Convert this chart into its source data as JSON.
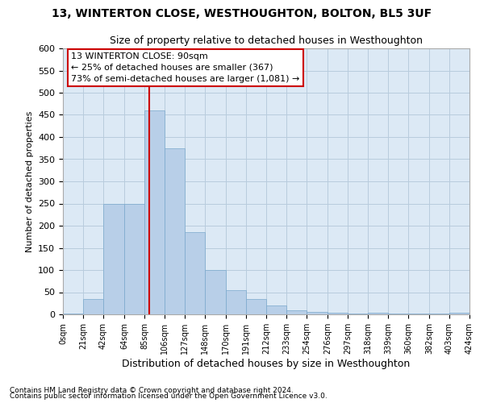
{
  "title": "13, WINTERTON CLOSE, WESTHOUGHTON, BOLTON, BL5 3UF",
  "subtitle": "Size of property relative to detached houses in Westhoughton",
  "xlabel": "Distribution of detached houses by size in Westhoughton",
  "ylabel": "Number of detached properties",
  "footer1": "Contains HM Land Registry data © Crown copyright and database right 2024.",
  "footer2": "Contains public sector information licensed under the Open Government Licence v3.0.",
  "annotation_line1": "13 WINTERTON CLOSE: 90sqm",
  "annotation_line2": "← 25% of detached houses are smaller (367)",
  "annotation_line3": "73% of semi-detached houses are larger (1,081) →",
  "property_size": 90,
  "bin_edges": [
    0,
    21,
    42,
    64,
    85,
    106,
    127,
    148,
    170,
    191,
    212,
    233,
    254,
    276,
    297,
    318,
    339,
    360,
    382,
    403,
    424
  ],
  "bar_heights": [
    2,
    35,
    250,
    250,
    460,
    375,
    185,
    100,
    55,
    35,
    20,
    10,
    5,
    3,
    2,
    3,
    1,
    1,
    1,
    3
  ],
  "bar_color": "#b8cfe8",
  "bar_edge_color": "#7aa8cc",
  "vline_color": "#cc0000",
  "vline_x": 90,
  "ylim": [
    0,
    600
  ],
  "yticks": [
    0,
    50,
    100,
    150,
    200,
    250,
    300,
    350,
    400,
    450,
    500,
    550,
    600
  ],
  "tick_labels": [
    "0sqm",
    "21sqm",
    "42sqm",
    "64sqm",
    "85sqm",
    "106sqm",
    "127sqm",
    "148sqm",
    "170sqm",
    "191sqm",
    "212sqm",
    "233sqm",
    "254sqm",
    "276sqm",
    "297sqm",
    "318sqm",
    "339sqm",
    "360sqm",
    "382sqm",
    "403sqm",
    "424sqm"
  ],
  "background_color": "#ffffff",
  "axes_bg_color": "#dce9f5",
  "grid_color": "#b8ccdd",
  "annotation_box_color": "#cc0000",
  "title_fontsize": 10,
  "subtitle_fontsize": 9,
  "ylabel_fontsize": 8,
  "xlabel_fontsize": 9,
  "tick_fontsize": 7,
  "ytick_fontsize": 8,
  "footer_fontsize": 6.5,
  "annotation_fontsize": 8
}
